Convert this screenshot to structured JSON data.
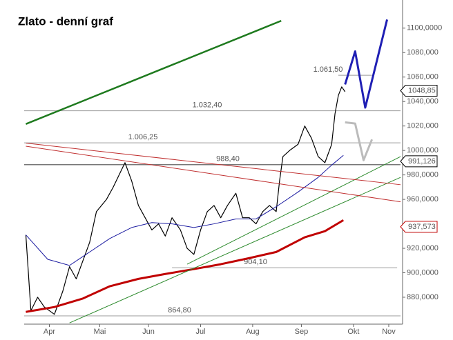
{
  "chart_data": {
    "type": "line",
    "title": "Zlato - denní graf",
    "xlim": [
      0,
      224
    ],
    "ylim": [
      858,
      1123
    ],
    "xticks": [
      {
        "value": 15,
        "label": "Apr"
      },
      {
        "value": 45,
        "label": "Mai"
      },
      {
        "value": 74,
        "label": "Jun"
      },
      {
        "value": 105,
        "label": "Jul"
      },
      {
        "value": 136,
        "label": "Aug"
      },
      {
        "value": 165,
        "label": "Sep"
      },
      {
        "value": 196,
        "label": "Okt"
      },
      {
        "value": 217,
        "label": "Nov"
      }
    ],
    "yticks": [
      {
        "value": 880,
        "label": "880,0000"
      },
      {
        "value": 900,
        "label": "900,0000"
      },
      {
        "value": 920,
        "label": "920,0000"
      },
      {
        "value": 960,
        "label": "960,0000"
      },
      {
        "value": 980,
        "label": "980,0000"
      },
      {
        "value": 1000,
        "label": "1000,000"
      },
      {
        "value": 1020,
        "label": "1020,000"
      },
      {
        "value": 1040,
        "label": "1040,000"
      },
      {
        "value": 1060,
        "label": "1060,000"
      },
      {
        "value": 1080,
        "label": "1080,000"
      },
      {
        "value": 1100,
        "label": "1100,0000"
      }
    ],
    "series": [
      {
        "color": "#000000",
        "width": 1.2,
        "x": [
          1,
          4,
          8,
          12,
          18,
          23,
          27,
          31,
          35,
          39,
          43,
          49,
          53,
          60,
          64,
          68,
          72,
          76,
          80,
          84,
          88,
          93,
          97,
          101,
          105,
          109,
          113,
          117,
          121,
          126,
          130,
          134,
          138,
          142,
          146,
          150,
          152,
          154,
          158,
          163,
          167,
          171,
          175,
          179,
          183,
          185,
          187,
          189,
          191
        ],
        "values": [
          931,
          869,
          880,
          872,
          866,
          885,
          905,
          895,
          910,
          925,
          950,
          960,
          970,
          990,
          975,
          955,
          945,
          935,
          940,
          930,
          945,
          935,
          920,
          915,
          935,
          950,
          955,
          945,
          955,
          965,
          945,
          945,
          940,
          950,
          955,
          950,
          975,
          995,
          1000,
          1005,
          1020,
          1010,
          995,
          990,
          1005,
          1030,
          1045,
          1052,
          1048
        ]
      },
      {
        "color": "#1a1aa0",
        "width": 1,
        "x": [
          1,
          14,
          27,
          39,
          51,
          64,
          76,
          88,
          101,
          113,
          126,
          138,
          150,
          163,
          175,
          183,
          190
        ],
        "values": [
          931,
          911,
          906,
          917,
          928,
          937,
          941,
          940,
          937,
          940,
          944,
          944,
          954,
          966,
          978,
          988,
          996
        ]
      },
      {
        "color": "#c00000",
        "width": 3,
        "x": [
          1,
          18,
          35,
          51,
          68,
          84,
          101,
          117,
          134,
          150,
          167,
          179,
          190
        ],
        "values": [
          868,
          872,
          879,
          889,
          895,
          899,
          903,
          907,
          912,
          917,
          929,
          934,
          943
        ]
      },
      {
        "color": "#1f1fb4",
        "width": 3,
        "x": [
          191,
          197,
          203,
          216
        ],
        "values": [
          1054,
          1081,
          1035,
          1107
        ]
      },
      {
        "color": "#bbbbbb",
        "width": 3,
        "x": [
          191,
          197,
          202,
          207
        ],
        "values": [
          1023,
          1022,
          992,
          1009
        ]
      },
      {
        "color": "#1e7a1e",
        "width": 2.5,
        "x": [
          1,
          153
        ],
        "values": [
          1021.6,
          1106
        ]
      },
      {
        "color": "#2e8b2e",
        "width": 1,
        "x": [
          97,
          224
        ],
        "values": [
          907,
          995
        ]
      },
      {
        "color": "#2e8b2e",
        "width": 1,
        "x": [
          27,
          224
        ],
        "values": [
          859,
          978
        ]
      },
      {
        "color": "#c03030",
        "width": 1,
        "x": [
          1,
          224
        ],
        "values": [
          1006,
          972
        ]
      },
      {
        "color": "#c03030",
        "width": 1,
        "x": [
          1,
          224
        ],
        "values": [
          1003.5,
          958
        ]
      }
    ],
    "levels": [
      {
        "value": 1061.5,
        "label": "1.061,50",
        "x": [
          187,
          207
        ]
      },
      {
        "value": 1032.4,
        "label": "1.032,40",
        "x": [
          0,
          224
        ]
      },
      {
        "value": 1006.25,
        "label": "1.006,25",
        "x": [
          0,
          224
        ]
      },
      {
        "value": 988.4,
        "label": "988,40",
        "x": [
          0,
          224
        ]
      },
      {
        "value": 904.1,
        "label": "904,10",
        "x": [
          88,
          222
        ]
      },
      {
        "value": 864.8,
        "label": "864,80",
        "x": [
          0,
          224
        ]
      }
    ],
    "price_tags": [
      {
        "value": 1048.85,
        "label": "1048,85",
        "color": "#000000"
      },
      {
        "value": 991.126,
        "label": "991,126",
        "color": "#000000"
      },
      {
        "value": 937.573,
        "label": "937,573",
        "color": "#c00000"
      }
    ]
  }
}
